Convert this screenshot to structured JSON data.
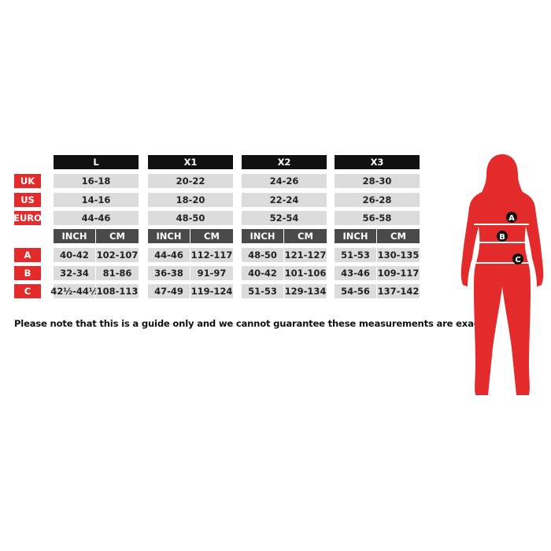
{
  "row_labels": [
    "UK",
    "US",
    "EURO",
    "A",
    "B",
    "C"
  ],
  "unit_labels": [
    "INCH",
    "CM"
  ],
  "sizes": [
    {
      "name": "L",
      "uk": "16-18",
      "us": "14-16",
      "euro": "44-46",
      "a": [
        "40-42",
        "102-107"
      ],
      "b": [
        "32-34",
        "81-86"
      ],
      "c": [
        "42½-44½",
        "108-113"
      ]
    },
    {
      "name": "X1",
      "uk": "20-22",
      "us": "18-20",
      "euro": "48-50",
      "a": [
        "44-46",
        "112-117"
      ],
      "b": [
        "36-38",
        "91-97"
      ],
      "c": [
        "47-49",
        "119-124"
      ]
    },
    {
      "name": "X2",
      "uk": "24-26",
      "us": "22-24",
      "euro": "52-54",
      "a": [
        "48-50",
        "121-127"
      ],
      "b": [
        "40-42",
        "101-106"
      ],
      "c": [
        "51-53",
        "129-134"
      ]
    },
    {
      "name": "X3",
      "uk": "28-30",
      "us": "26-28",
      "euro": "56-58",
      "a": [
        "51-53",
        "130-135"
      ],
      "b": [
        "43-46",
        "109-117"
      ],
      "c": [
        "54-56",
        "137-142"
      ]
    }
  ],
  "note": "Please note that this is a guide only and we cannot guarantee these measurements are exact.",
  "figure": {
    "markers": [
      "A",
      "B",
      "C"
    ],
    "color": "#e32b2b"
  },
  "colors": {
    "header": "#111111",
    "subheader": "#4a4a4a",
    "cell": "#dcdcdc",
    "label": "#e32b2b"
  }
}
